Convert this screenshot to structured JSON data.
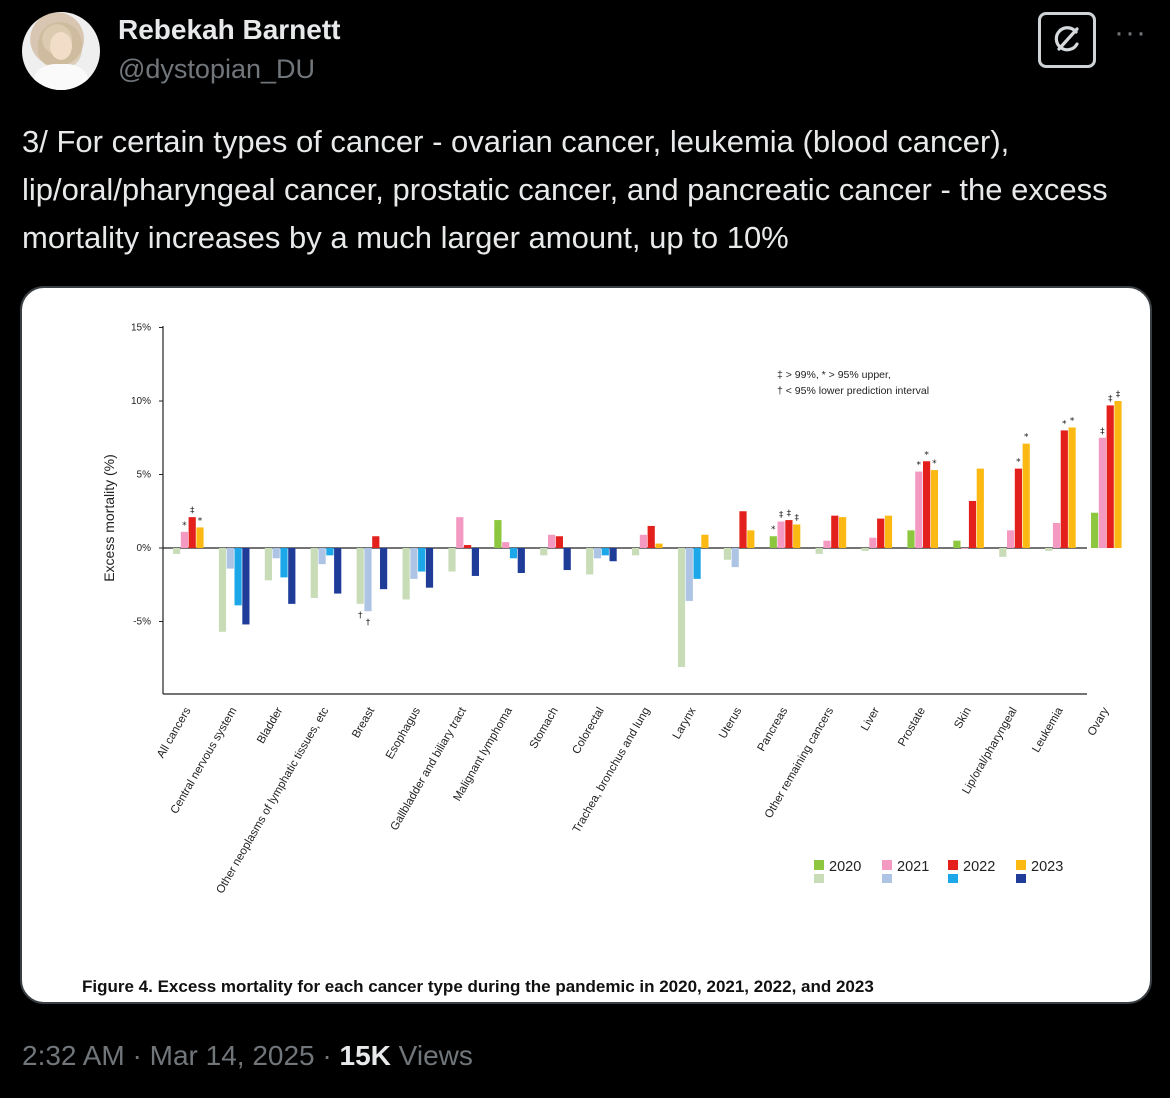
{
  "author": {
    "name": "Rebekah Barnett",
    "handle": "@dystopian_DU"
  },
  "tweet": {
    "text": "3/ For certain types of cancer - ovarian cancer, leukemia (blood cancer), lip/oral/pharyngeal cancer, prostatic cancer, and pancreatic cancer -  the excess mortality increases by a much larger amount, up to 10%"
  },
  "meta": {
    "time": "2:32 AM",
    "date": "Mar 14, 2025",
    "separator": "·",
    "views_count": "15K",
    "views_label": "Views"
  },
  "icons": {
    "grok": "grok-icon",
    "more": "more-icon"
  },
  "colors": {
    "y2020": "#8dc63f",
    "y2021": "#f49ac2",
    "y2022": "#e3201b",
    "y2023": "#fdb913",
    "y2020_light": "#c9dcb8",
    "y2021_light": "#aec4e4",
    "y2022_light": "#1ba7e8",
    "y2023_light": "#1f3c99"
  },
  "chart_data": {
    "type": "bar",
    "ylabel": "Excess  mortality (%)",
    "ylim": [
      -10,
      15
    ],
    "yticks": [
      15,
      10,
      5,
      0,
      -5
    ],
    "ytick_labels": [
      "15%",
      "10%",
      "5%",
      "0%",
      "-5%"
    ],
    "caption": "Figure 4. Excess mortality for each cancer type during the pandemic in 2020, 2021, 2022, and 2023",
    "annotation_lines": [
      "‡ > 99%, * > 95% upper,",
      "† < 95% lower prediction interval"
    ],
    "categories": [
      "All cancers",
      "Central nervous system",
      "Bladder",
      "Other neoplasms of lymphatic tissues, etc",
      "Breast",
      "Esophagus",
      "Gallbladder and biliary tract",
      "Malignant lymphoma",
      "Stomach",
      "Colorectal",
      "Trachea, bronchus and lung",
      "Larynx",
      "Uterus",
      "Pancreas",
      "Other remaining cancers",
      "Liver",
      "Prostate",
      "Skin",
      "Lip/oral/pharyngeal",
      "Leukemia",
      "Ovary"
    ],
    "series": [
      {
        "name": "2020",
        "values": [
          -0.4,
          -5.7,
          -2.2,
          -3.4,
          -3.8,
          -3.5,
          -1.6,
          1.9,
          -0.5,
          -1.8,
          -0.5,
          -8.1,
          -0.8,
          0.8,
          -0.4,
          -0.2,
          1.2,
          0.5,
          -0.6,
          -0.2,
          2.4
        ]
      },
      {
        "name": "2021",
        "values": [
          1.1,
          -1.4,
          -0.7,
          -1.1,
          -4.3,
          -2.1,
          2.1,
          0.4,
          0.9,
          -0.7,
          0.9,
          -3.6,
          -1.3,
          1.8,
          0.5,
          0.7,
          5.2,
          0.0,
          1.2,
          1.7,
          7.5
        ]
      },
      {
        "name": "2022",
        "values": [
          2.1,
          -3.9,
          -2.0,
          -0.5,
          0.8,
          -1.6,
          0.2,
          -0.7,
          0.8,
          -0.5,
          1.5,
          -2.1,
          2.5,
          1.9,
          2.2,
          2.0,
          5.9,
          3.2,
          5.4,
          8.0,
          9.7
        ]
      },
      {
        "name": "2023",
        "values": [
          1.4,
          -5.2,
          -3.8,
          -3.1,
          -2.8,
          -2.7,
          -1.9,
          -1.7,
          -1.5,
          -0.9,
          0.3,
          0.9,
          1.2,
          1.6,
          2.1,
          2.2,
          5.3,
          5.4,
          7.1,
          8.2,
          10.0
        ]
      }
    ],
    "markers": [
      {
        "category": 0,
        "series": 1,
        "symbol": "*"
      },
      {
        "category": 0,
        "series": 2,
        "symbol": "‡"
      },
      {
        "category": 0,
        "series": 3,
        "symbol": "*"
      },
      {
        "category": 4,
        "series": 0,
        "symbol": "†"
      },
      {
        "category": 4,
        "series": 1,
        "symbol": "†"
      },
      {
        "category": 13,
        "series": 0,
        "symbol": "*"
      },
      {
        "category": 13,
        "series": 1,
        "symbol": "‡"
      },
      {
        "category": 13,
        "series": 2,
        "symbol": "‡"
      },
      {
        "category": 13,
        "series": 3,
        "symbol": "‡"
      },
      {
        "category": 16,
        "series": 1,
        "symbol": "*"
      },
      {
        "category": 16,
        "series": 2,
        "symbol": "*"
      },
      {
        "category": 16,
        "series": 3,
        "symbol": "*"
      },
      {
        "category": 18,
        "series": 2,
        "symbol": "*"
      },
      {
        "category": 18,
        "series": 3,
        "symbol": "*"
      },
      {
        "category": 19,
        "series": 2,
        "symbol": "*"
      },
      {
        "category": 19,
        "series": 3,
        "symbol": "*"
      },
      {
        "category": 20,
        "series": 1,
        "symbol": "‡"
      },
      {
        "category": 20,
        "series": 2,
        "symbol": "‡"
      },
      {
        "category": 20,
        "series": 3,
        "symbol": "‡"
      }
    ],
    "legend": [
      "2020",
      "2021",
      "2022",
      "2023"
    ],
    "legend_position": "bottom-right"
  }
}
